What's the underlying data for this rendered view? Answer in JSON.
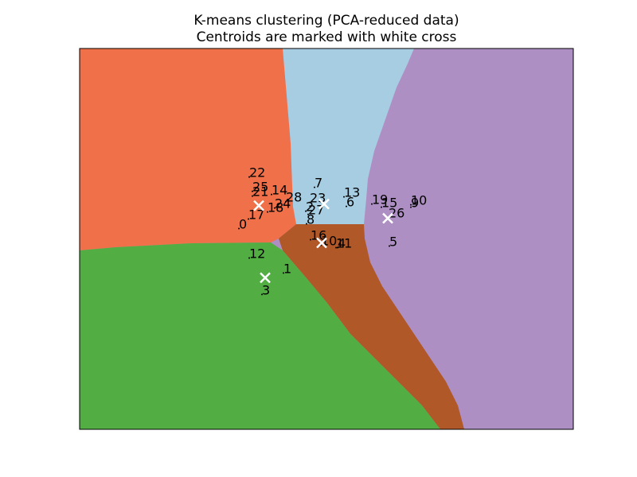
{
  "chart_data": {
    "type": "scatter",
    "title": "K-means clustering (PCA-reduced data)",
    "subtitle": "Centroids are marked with white cross",
    "xlabel": "",
    "ylabel": "",
    "xticks": [],
    "yticks": [],
    "grid": false,
    "xlim": [
      0,
      620
    ],
    "ylim": [
      0,
      480
    ],
    "regions": [
      {
        "cluster": "orange",
        "color": "#f07149"
      },
      {
        "cluster": "light-blue",
        "color": "#a6cde2"
      },
      {
        "cluster": "purple",
        "color": "#ae8fc4"
      },
      {
        "cluster": "brown",
        "color": "#b15828"
      },
      {
        "cluster": "green",
        "color": "#52ae43"
      }
    ],
    "points": [
      {
        "label": "22",
        "x": 213,
        "y": 318
      },
      {
        "label": "25",
        "x": 217,
        "y": 300
      },
      {
        "label": "21",
        "x": 217,
        "y": 294
      },
      {
        "label": "14",
        "x": 241,
        "y": 296
      },
      {
        "label": "28",
        "x": 259,
        "y": 287
      },
      {
        "label": "24",
        "x": 245,
        "y": 279
      },
      {
        "label": "18",
        "x": 236,
        "y": 274
      },
      {
        "label": "17",
        "x": 212,
        "y": 265
      },
      {
        "label": "0",
        "x": 200,
        "y": 253
      },
      {
        "label": "12",
        "x": 213,
        "y": 216
      },
      {
        "label": "1",
        "x": 256,
        "y": 197
      },
      {
        "label": "3",
        "x": 229,
        "y": 170
      },
      {
        "label": "7",
        "x": 295,
        "y": 305
      },
      {
        "label": "23",
        "x": 289,
        "y": 286
      },
      {
        "label": "13",
        "x": 332,
        "y": 293
      },
      {
        "label": "6",
        "x": 335,
        "y": 281
      },
      {
        "label": "2",
        "x": 284,
        "y": 275
      },
      {
        "label": "27",
        "x": 287,
        "y": 271
      },
      {
        "label": "8",
        "x": 285,
        "y": 259
      },
      {
        "label": "16",
        "x": 290,
        "y": 239
      },
      {
        "label": "10",
        "x": 303,
        "y": 232
      },
      {
        "label": "11",
        "x": 322,
        "y": 229
      },
      {
        "label": "4",
        "x": 324,
        "y": 229
      },
      {
        "label": "19",
        "x": 367,
        "y": 284
      },
      {
        "label": "15",
        "x": 379,
        "y": 280
      },
      {
        "label": "26",
        "x": 388,
        "y": 267
      },
      {
        "label": "5",
        "x": 389,
        "y": 231
      },
      {
        "label": "9",
        "x": 416,
        "y": 280
      },
      {
        "label": "10",
        "x": 416,
        "y": 283
      }
    ],
    "centroids": [
      {
        "x": 225,
        "y": 282
      },
      {
        "x": 307,
        "y": 284
      },
      {
        "x": 387,
        "y": 266
      },
      {
        "x": 304,
        "y": 235
      },
      {
        "x": 233,
        "y": 191
      }
    ]
  }
}
